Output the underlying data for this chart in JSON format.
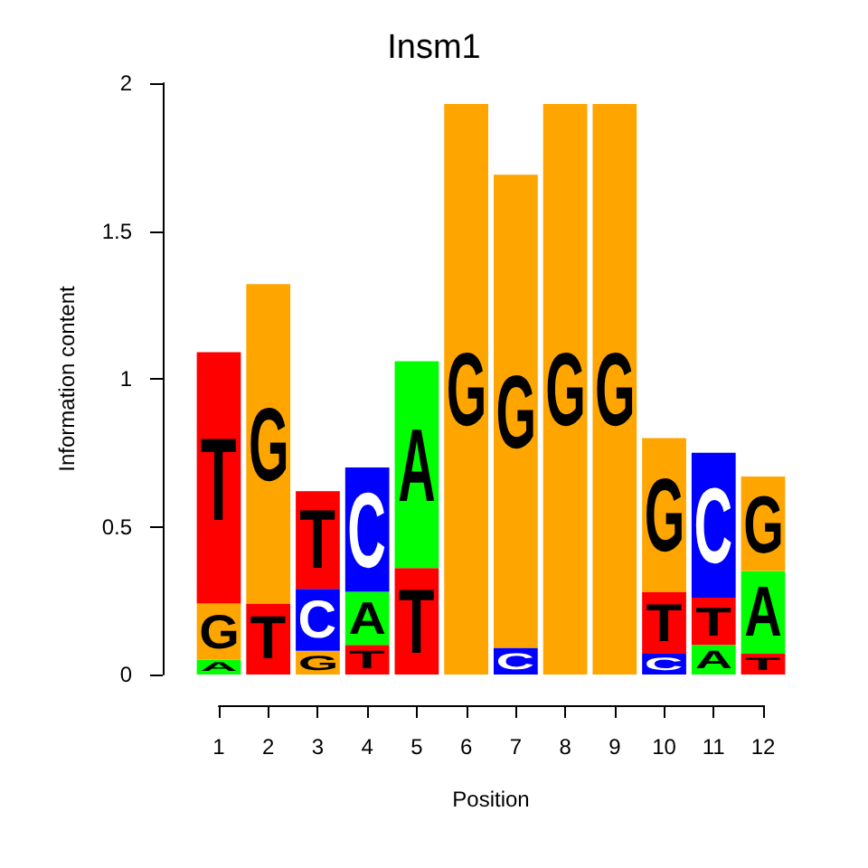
{
  "chart_data": {
    "type": "bar",
    "title": "Insm1",
    "xlabel": "Position",
    "ylabel": "Information content",
    "x": [
      1,
      2,
      3,
      4,
      5,
      6,
      7,
      8,
      9,
      10,
      11,
      12
    ],
    "stacked": true,
    "series": [
      {
        "values": [
          0.05,
          0.24,
          0.08,
          0.1,
          0.36,
          1.93,
          0.09,
          1.93,
          1.93,
          0.07,
          0.1,
          0.07
        ],
        "colors": [
          "#00ff00",
          "#ff0000",
          "#ffa500",
          "#ff0000",
          "#ff0000",
          "#ffa500",
          "#0000ff",
          "#ffa500",
          "#ffa500",
          "#0000ff",
          "#00ff00",
          "#ff0000"
        ],
        "value_labels": [
          "A",
          "T",
          "G",
          "T",
          "T",
          "G",
          "C",
          "G",
          "G",
          "C",
          "A",
          "T"
        ]
      },
      {
        "values": [
          0.19,
          1.08,
          0.21,
          0.18,
          0.7,
          null,
          1.6,
          null,
          null,
          0.21,
          0.16,
          0.28
        ],
        "colors": [
          "#ffa500",
          "#ffa500",
          "#0000ff",
          "#00ff00",
          "#00ff00",
          null,
          "#ffa500",
          null,
          null,
          "#ff0000",
          "#ff0000",
          "#00ff00"
        ],
        "value_labels": [
          "G",
          "G",
          "C",
          "A",
          "A",
          null,
          "G",
          null,
          null,
          "T",
          "T",
          "A"
        ]
      },
      {
        "values": [
          0.85,
          null,
          0.33,
          0.42,
          null,
          null,
          null,
          null,
          null,
          0.52,
          0.49,
          0.32
        ],
        "colors": [
          "#ff0000",
          null,
          "#ff0000",
          "#0000ff",
          null,
          null,
          null,
          null,
          null,
          "#ffa500",
          "#0000ff",
          "#ffa500"
        ],
        "value_labels": [
          "T",
          null,
          "T",
          "C",
          null,
          null,
          null,
          null,
          null,
          "G",
          "C",
          "G"
        ]
      }
    ],
    "xlim": [
      1,
      12
    ],
    "xticks": [
      1,
      2,
      3,
      4,
      5,
      6,
      7,
      8,
      9,
      10,
      11,
      12
    ],
    "ylim": [
      0,
      2
    ],
    "yticks": [
      0,
      0.5,
      1,
      1.5,
      2
    ],
    "grid": false
  }
}
